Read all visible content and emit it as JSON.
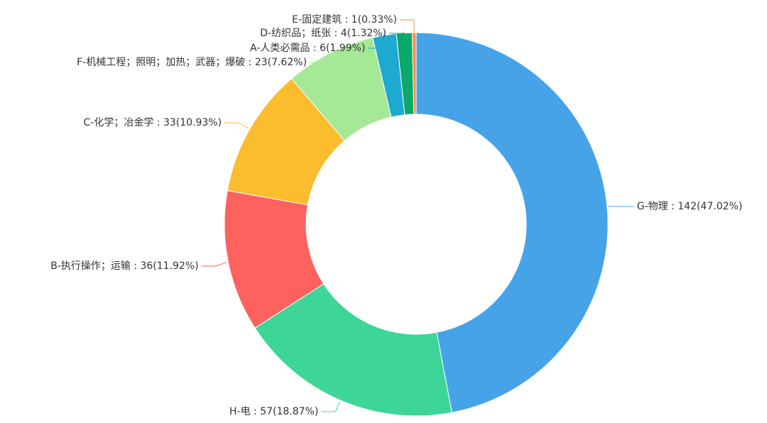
{
  "chart_data": {
    "type": "donut",
    "labels": [
      "G-物理 : 142(47.02%)",
      "H-电 : 57(18.87%)",
      "B-执行操作；运输 : 36(11.92%)",
      "C-化学；冶金学 : 33(10.93%)",
      "F-机械工程；照明；加热；武器；爆破 : 23(7.62%)",
      "A-人类必需品 : 6(1.99%)",
      "D-纺织品；纸张 : 4(1.32%)",
      "E-固定建筑 : 1(0.33%)"
    ],
    "values": [
      142,
      57,
      36,
      33,
      23,
      6,
      4,
      1
    ],
    "colors": [
      "#46a3e8",
      "#3dd598",
      "#fd625e",
      "#fbbc2d",
      "#a5e895",
      "#1ea9d1",
      "#0aa86a",
      "#fe8b3f"
    ]
  }
}
